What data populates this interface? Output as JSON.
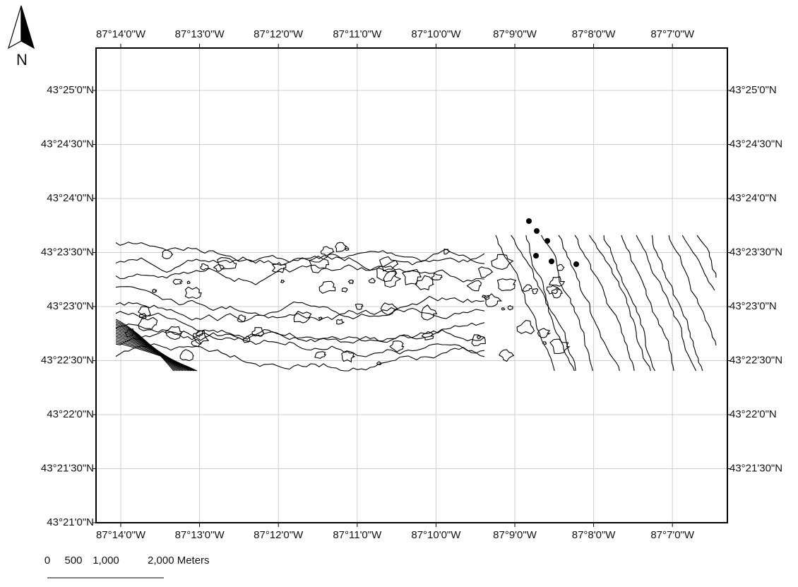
{
  "north_arrow": {
    "label": "N"
  },
  "longitude_labels": [
    "87°14'0\"W",
    "87°13'0\"W",
    "87°12'0\"W",
    "87°11'0\"W",
    "87°10'0\"W",
    "87°9'0\"W",
    "87°8'0\"W",
    "87°7'0\"W"
  ],
  "latitude_labels": [
    "43°25'0\"N",
    "43°24'30\"N",
    "43°24'0\"N",
    "43°23'30\"N",
    "43°23'0\"N",
    "43°22'30\"N",
    "43°22'0\"N",
    "43°21'30\"N",
    "43°21'0\"N"
  ],
  "scale_bar": {
    "labels": [
      "0",
      "500",
      "1,000",
      "2,000 Meters"
    ]
  }
}
